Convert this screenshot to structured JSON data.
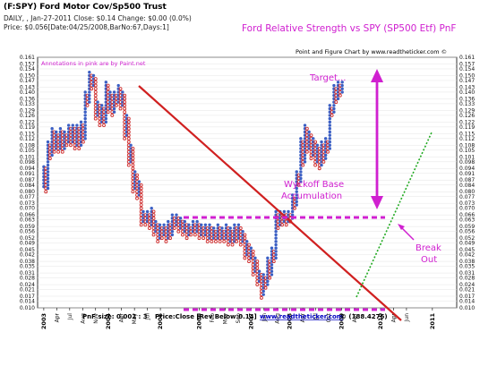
{
  "header": {
    "title": "(F:SPY) Ford Motor Cov/Sp500 Trust",
    "line2": "DAILY, , Jan-27-2011 Close: $0.14 Change: $0.00 (0.0%)",
    "line3": "Price: $0.056[Date:04/25/2008,BarNo:67,Days:1]"
  },
  "chart_title": "Ford Relative Strength vs SPY (SP500 Etf) PnF",
  "site_credit": "Point and Figure Chart by www.readtheticker.com ©",
  "annotations": {
    "note": "Annotations in pink are by Paint.net",
    "target": "Target...",
    "wyckoff_line1": "Wyckoff Base",
    "wyckoff_line2": "Accumulation",
    "break_line1": "Break",
    "break_line2": "Out"
  },
  "footer": {
    "box": "PnF size: 0.002 : 3",
    "price": "Price:Close [Rev Below:0.14]",
    "url": "www.readtheticker.com",
    "count": "© (188.4276)"
  },
  "colors": {
    "x_mark": "#3b5fc4",
    "o_mark": "#d03030",
    "trendline": "#d02020",
    "annotation": "#d020d0",
    "support": "#22aa22"
  },
  "chart_data": {
    "type": "point-and-figure",
    "title": "Ford Relative Strength vs SPY (SP500 Etf) PnF",
    "box_size": 0.002,
    "reversal": 3,
    "ylim": [
      0.01,
      0.161
    ],
    "y_ticks": [
      "0.161",
      "0.157",
      "0.154",
      "0.150",
      "0.147",
      "0.143",
      "0.140",
      "0.136",
      "0.133",
      "0.129",
      "0.126",
      "0.122",
      "0.119",
      "0.115",
      "0.112",
      "0.108",
      "0.105",
      "0.101",
      "0.098",
      "0.094",
      "0.091",
      "0.087",
      "0.084",
      "0.080",
      "0.077",
      "0.073",
      "0.070",
      "0.066",
      "0.063",
      "0.059",
      "0.056",
      "0.052",
      "0.049",
      "0.045",
      "0.042",
      "0.038",
      "0.035",
      "0.031",
      "0.028",
      "0.024",
      "0.021",
      "0.017",
      "0.014",
      "0.010"
    ],
    "x_labels": [
      {
        "t": 0.0,
        "label": "2003",
        "year": true
      },
      {
        "t": 0.25,
        "label": "Apr"
      },
      {
        "t": 0.5,
        "label": "Jul"
      },
      {
        "t": 0.75,
        "label": "Aug"
      },
      {
        "t": 1.0,
        "label": "Nov"
      },
      {
        "t": 1.25,
        "label": "2004",
        "year": true
      },
      {
        "t": 1.5,
        "label": "Apr"
      },
      {
        "t": 1.75,
        "label": "May"
      },
      {
        "t": 2.0,
        "label": "Jul"
      },
      {
        "t": 2.25,
        "label": "2005",
        "year": true
      },
      {
        "t": 3.0,
        "label": "2006",
        "year": true
      },
      {
        "t": 3.25,
        "label": "Feb"
      },
      {
        "t": 3.5,
        "label": "May"
      },
      {
        "t": 3.75,
        "label": "Sep"
      },
      {
        "t": 4.0,
        "label": "2007",
        "year": true
      },
      {
        "t": 4.25,
        "label": "Jun"
      },
      {
        "t": 4.5,
        "label": "Aug"
      },
      {
        "t": 4.75,
        "label": "2008",
        "year": true
      },
      {
        "t": 5.0,
        "label": "Apr"
      },
      {
        "t": 5.25,
        "label": "Jul"
      },
      {
        "t": 5.5,
        "label": "Oct"
      },
      {
        "t": 5.75,
        "label": "2009",
        "year": true
      },
      {
        "t": 6.0,
        "label": "Apr"
      },
      {
        "t": 6.5,
        "label": "2010",
        "year": true
      },
      {
        "t": 6.75,
        "label": "Apr"
      },
      {
        "t": 7.0,
        "label": "Jun"
      },
      {
        "t": 7.5,
        "label": "2011",
        "year": true
      }
    ],
    "columns": [
      {
        "t": 0.0,
        "type": "X",
        "low": 0.083,
        "high": 0.096
      },
      {
        "t": 0.04,
        "type": "O",
        "low": 0.08,
        "high": 0.094
      },
      {
        "t": 0.08,
        "type": "X",
        "low": 0.082,
        "high": 0.11
      },
      {
        "t": 0.12,
        "type": "O",
        "low": 0.1,
        "high": 0.108
      },
      {
        "t": 0.16,
        "type": "X",
        "low": 0.102,
        "high": 0.118
      },
      {
        "t": 0.2,
        "type": "O",
        "low": 0.104,
        "high": 0.116
      },
      {
        "t": 0.24,
        "type": "X",
        "low": 0.106,
        "high": 0.116
      },
      {
        "t": 0.28,
        "type": "O",
        "low": 0.104,
        "high": 0.114
      },
      {
        "t": 0.32,
        "type": "X",
        "low": 0.106,
        "high": 0.118
      },
      {
        "t": 0.36,
        "type": "O",
        "low": 0.104,
        "high": 0.116
      },
      {
        "t": 0.4,
        "type": "X",
        "low": 0.106,
        "high": 0.116
      },
      {
        "t": 0.44,
        "type": "O",
        "low": 0.108,
        "high": 0.114
      },
      {
        "t": 0.48,
        "type": "X",
        "low": 0.11,
        "high": 0.12
      },
      {
        "t": 0.52,
        "type": "O",
        "low": 0.108,
        "high": 0.118
      },
      {
        "t": 0.56,
        "type": "X",
        "low": 0.11,
        "high": 0.12
      },
      {
        "t": 0.6,
        "type": "O",
        "low": 0.106,
        "high": 0.118
      },
      {
        "t": 0.64,
        "type": "X",
        "low": 0.108,
        "high": 0.12
      },
      {
        "t": 0.68,
        "type": "O",
        "low": 0.106,
        "high": 0.118
      },
      {
        "t": 0.72,
        "type": "X",
        "low": 0.108,
        "high": 0.122
      },
      {
        "t": 0.76,
        "type": "O",
        "low": 0.11,
        "high": 0.12
      },
      {
        "t": 0.8,
        "type": "X",
        "low": 0.112,
        "high": 0.14
      },
      {
        "t": 0.84,
        "type": "O",
        "low": 0.132,
        "high": 0.138
      },
      {
        "t": 0.88,
        "type": "X",
        "low": 0.134,
        "high": 0.152
      },
      {
        "t": 0.92,
        "type": "O",
        "low": 0.142,
        "high": 0.15
      },
      {
        "t": 0.96,
        "type": "X",
        "low": 0.144,
        "high": 0.15
      },
      {
        "t": 1.0,
        "type": "O",
        "low": 0.124,
        "high": 0.148
      },
      {
        "t": 1.04,
        "type": "X",
        "low": 0.126,
        "high": 0.134
      },
      {
        "t": 1.08,
        "type": "O",
        "low": 0.12,
        "high": 0.132
      },
      {
        "t": 1.12,
        "type": "X",
        "low": 0.122,
        "high": 0.132
      },
      {
        "t": 1.16,
        "type": "O",
        "low": 0.12,
        "high": 0.13
      },
      {
        "t": 1.2,
        "type": "X",
        "low": 0.122,
        "high": 0.146
      },
      {
        "t": 1.24,
        "type": "O",
        "low": 0.128,
        "high": 0.144
      },
      {
        "t": 1.28,
        "type": "X",
        "low": 0.13,
        "high": 0.14
      },
      {
        "t": 1.32,
        "type": "O",
        "low": 0.126,
        "high": 0.138
      },
      {
        "t": 1.36,
        "type": "X",
        "low": 0.128,
        "high": 0.14
      },
      {
        "t": 1.4,
        "type": "O",
        "low": 0.132,
        "high": 0.138
      },
      {
        "t": 1.44,
        "type": "X",
        "low": 0.134,
        "high": 0.144
      },
      {
        "t": 1.48,
        "type": "O",
        "low": 0.13,
        "high": 0.142
      },
      {
        "t": 1.52,
        "type": "X",
        "low": 0.132,
        "high": 0.14
      },
      {
        "t": 1.56,
        "type": "O",
        "low": 0.112,
        "high": 0.138
      },
      {
        "t": 1.6,
        "type": "X",
        "low": 0.114,
        "high": 0.126
      },
      {
        "t": 1.64,
        "type": "O",
        "low": 0.096,
        "high": 0.124
      },
      {
        "t": 1.68,
        "type": "X",
        "low": 0.098,
        "high": 0.108
      },
      {
        "t": 1.72,
        "type": "O",
        "low": 0.08,
        "high": 0.106
      },
      {
        "t": 1.76,
        "type": "X",
        "low": 0.082,
        "high": 0.092
      },
      {
        "t": 1.8,
        "type": "O",
        "low": 0.076,
        "high": 0.09
      },
      {
        "t": 1.84,
        "type": "X",
        "low": 0.078,
        "high": 0.086
      },
      {
        "t": 1.88,
        "type": "O",
        "low": 0.06,
        "high": 0.084
      },
      {
        "t": 1.92,
        "type": "X",
        "low": 0.062,
        "high": 0.068
      },
      {
        "t": 1.96,
        "type": "O",
        "low": 0.06,
        "high": 0.066
      },
      {
        "t": 2.0,
        "type": "X",
        "low": 0.062,
        "high": 0.068
      },
      {
        "t": 2.04,
        "type": "O",
        "low": 0.058,
        "high": 0.066
      },
      {
        "t": 2.08,
        "type": "X",
        "low": 0.06,
        "high": 0.07
      },
      {
        "t": 2.12,
        "type": "O",
        "low": 0.054,
        "high": 0.068
      },
      {
        "t": 2.16,
        "type": "X",
        "low": 0.056,
        "high": 0.062
      },
      {
        "t": 2.2,
        "type": "O",
        "low": 0.05,
        "high": 0.06
      },
      {
        "t": 2.24,
        "type": "X",
        "low": 0.052,
        "high": 0.06
      },
      {
        "t": 2.28,
        "type": "O",
        "low": 0.052,
        "high": 0.058
      },
      {
        "t": 2.32,
        "type": "X",
        "low": 0.054,
        "high": 0.06
      },
      {
        "t": 2.36,
        "type": "O",
        "low": 0.05,
        "high": 0.058
      },
      {
        "t": 2.4,
        "type": "X",
        "low": 0.052,
        "high": 0.062
      },
      {
        "t": 2.44,
        "type": "O",
        "low": 0.052,
        "high": 0.06
      },
      {
        "t": 2.48,
        "type": "X",
        "low": 0.054,
        "high": 0.066
      },
      {
        "t": 2.52,
        "type": "O",
        "low": 0.058,
        "high": 0.064
      },
      {
        "t": 2.56,
        "type": "X",
        "low": 0.06,
        "high": 0.066
      },
      {
        "t": 2.6,
        "type": "O",
        "low": 0.056,
        "high": 0.064
      },
      {
        "t": 2.64,
        "type": "X",
        "low": 0.058,
        "high": 0.064
      },
      {
        "t": 2.68,
        "type": "O",
        "low": 0.054,
        "high": 0.062
      },
      {
        "t": 2.72,
        "type": "X",
        "low": 0.056,
        "high": 0.062
      },
      {
        "t": 2.76,
        "type": "O",
        "low": 0.052,
        "high": 0.06
      },
      {
        "t": 2.8,
        "type": "X",
        "low": 0.054,
        "high": 0.06
      },
      {
        "t": 2.84,
        "type": "O",
        "low": 0.054,
        "high": 0.058
      },
      {
        "t": 2.88,
        "type": "X",
        "low": 0.056,
        "high": 0.062
      },
      {
        "t": 2.92,
        "type": "O",
        "low": 0.054,
        "high": 0.06
      },
      {
        "t": 2.96,
        "type": "X",
        "low": 0.056,
        "high": 0.062
      },
      {
        "t": 3.0,
        "type": "O",
        "low": 0.052,
        "high": 0.06
      },
      {
        "t": 3.04,
        "type": "X",
        "low": 0.054,
        "high": 0.06
      },
      {
        "t": 3.08,
        "type": "O",
        "low": 0.052,
        "high": 0.058
      },
      {
        "t": 3.12,
        "type": "X",
        "low": 0.054,
        "high": 0.06
      },
      {
        "t": 3.16,
        "type": "O",
        "low": 0.05,
        "high": 0.058
      },
      {
        "t": 3.2,
        "type": "X",
        "low": 0.052,
        "high": 0.06
      },
      {
        "t": 3.24,
        "type": "O",
        "low": 0.05,
        "high": 0.058
      },
      {
        "t": 3.28,
        "type": "X",
        "low": 0.052,
        "high": 0.058
      },
      {
        "t": 3.32,
        "type": "O",
        "low": 0.05,
        "high": 0.056
      },
      {
        "t": 3.36,
        "type": "X",
        "low": 0.052,
        "high": 0.06
      },
      {
        "t": 3.4,
        "type": "O",
        "low": 0.05,
        "high": 0.058
      },
      {
        "t": 3.44,
        "type": "X",
        "low": 0.052,
        "high": 0.058
      },
      {
        "t": 3.48,
        "type": "O",
        "low": 0.05,
        "high": 0.056
      },
      {
        "t": 3.52,
        "type": "X",
        "low": 0.052,
        "high": 0.06
      },
      {
        "t": 3.56,
        "type": "O",
        "low": 0.048,
        "high": 0.058
      },
      {
        "t": 3.6,
        "type": "X",
        "low": 0.05,
        "high": 0.058
      },
      {
        "t": 3.64,
        "type": "O",
        "low": 0.048,
        "high": 0.056
      },
      {
        "t": 3.68,
        "type": "X",
        "low": 0.05,
        "high": 0.06
      },
      {
        "t": 3.72,
        "type": "O",
        "low": 0.05,
        "high": 0.058
      },
      {
        "t": 3.76,
        "type": "X",
        "low": 0.052,
        "high": 0.06
      },
      {
        "t": 3.8,
        "type": "O",
        "low": 0.048,
        "high": 0.058
      },
      {
        "t": 3.84,
        "type": "X",
        "low": 0.05,
        "high": 0.056
      },
      {
        "t": 3.88,
        "type": "O",
        "low": 0.04,
        "high": 0.054
      },
      {
        "t": 3.92,
        "type": "X",
        "low": 0.042,
        "high": 0.05
      },
      {
        "t": 3.96,
        "type": "O",
        "low": 0.038,
        "high": 0.048
      },
      {
        "t": 4.0,
        "type": "X",
        "low": 0.04,
        "high": 0.046
      },
      {
        "t": 4.04,
        "type": "O",
        "low": 0.03,
        "high": 0.044
      },
      {
        "t": 4.08,
        "type": "X",
        "low": 0.032,
        "high": 0.04
      },
      {
        "t": 4.12,
        "type": "O",
        "low": 0.024,
        "high": 0.038
      },
      {
        "t": 4.16,
        "type": "X",
        "low": 0.026,
        "high": 0.032
      },
      {
        "t": 4.2,
        "type": "O",
        "low": 0.016,
        "high": 0.03
      },
      {
        "t": 4.24,
        "type": "X",
        "low": 0.018,
        "high": 0.03
      },
      {
        "t": 4.28,
        "type": "O",
        "low": 0.022,
        "high": 0.028
      },
      {
        "t": 4.32,
        "type": "X",
        "low": 0.024,
        "high": 0.04
      },
      {
        "t": 4.36,
        "type": "O",
        "low": 0.028,
        "high": 0.038
      },
      {
        "t": 4.4,
        "type": "X",
        "low": 0.03,
        "high": 0.046
      },
      {
        "t": 4.44,
        "type": "O",
        "low": 0.038,
        "high": 0.044
      },
      {
        "t": 4.48,
        "type": "X",
        "low": 0.04,
        "high": 0.068
      },
      {
        "t": 4.52,
        "type": "O",
        "low": 0.058,
        "high": 0.066
      },
      {
        "t": 4.56,
        "type": "X",
        "low": 0.06,
        "high": 0.068
      },
      {
        "t": 4.6,
        "type": "O",
        "low": 0.06,
        "high": 0.066
      },
      {
        "t": 4.64,
        "type": "X",
        "low": 0.062,
        "high": 0.068
      },
      {
        "t": 4.68,
        "type": "O",
        "low": 0.06,
        "high": 0.066
      },
      {
        "t": 4.72,
        "type": "X",
        "low": 0.062,
        "high": 0.068
      },
      {
        "t": 4.76,
        "type": "O",
        "low": 0.062,
        "high": 0.066
      },
      {
        "t": 4.8,
        "type": "X",
        "low": 0.064,
        "high": 0.078
      },
      {
        "t": 4.84,
        "type": "O",
        "low": 0.07,
        "high": 0.076
      },
      {
        "t": 4.88,
        "type": "X",
        "low": 0.072,
        "high": 0.092
      },
      {
        "t": 4.92,
        "type": "O",
        "low": 0.084,
        "high": 0.09
      },
      {
        "t": 4.96,
        "type": "X",
        "low": 0.086,
        "high": 0.112
      },
      {
        "t": 5.0,
        "type": "O",
        "low": 0.096,
        "high": 0.11
      },
      {
        "t": 5.04,
        "type": "X",
        "low": 0.098,
        "high": 0.12
      },
      {
        "t": 5.08,
        "type": "O",
        "low": 0.104,
        "high": 0.118
      },
      {
        "t": 5.12,
        "type": "X",
        "low": 0.106,
        "high": 0.116
      },
      {
        "t": 5.16,
        "type": "O",
        "low": 0.1,
        "high": 0.114
      },
      {
        "t": 5.2,
        "type": "X",
        "low": 0.102,
        "high": 0.112
      },
      {
        "t": 5.24,
        "type": "O",
        "low": 0.096,
        "high": 0.11
      },
      {
        "t": 5.28,
        "type": "X",
        "low": 0.098,
        "high": 0.108
      },
      {
        "t": 5.32,
        "type": "O",
        "low": 0.094,
        "high": 0.106
      },
      {
        "t": 5.36,
        "type": "X",
        "low": 0.096,
        "high": 0.11
      },
      {
        "t": 5.4,
        "type": "O",
        "low": 0.098,
        "high": 0.108
      },
      {
        "t": 5.44,
        "type": "X",
        "low": 0.1,
        "high": 0.112
      },
      {
        "t": 5.48,
        "type": "O",
        "low": 0.104,
        "high": 0.11
      },
      {
        "t": 5.52,
        "type": "X",
        "low": 0.106,
        "high": 0.132
      },
      {
        "t": 5.56,
        "type": "O",
        "low": 0.126,
        "high": 0.13
      },
      {
        "t": 5.6,
        "type": "X",
        "low": 0.128,
        "high": 0.144
      },
      {
        "t": 5.64,
        "type": "O",
        "low": 0.134,
        "high": 0.142
      },
      {
        "t": 5.68,
        "type": "X",
        "low": 0.136,
        "high": 0.146
      },
      {
        "t": 5.72,
        "type": "O",
        "low": 0.138,
        "high": 0.144
      },
      {
        "t": 5.76,
        "type": "X",
        "low": 0.14,
        "high": 0.146
      }
    ]
  }
}
